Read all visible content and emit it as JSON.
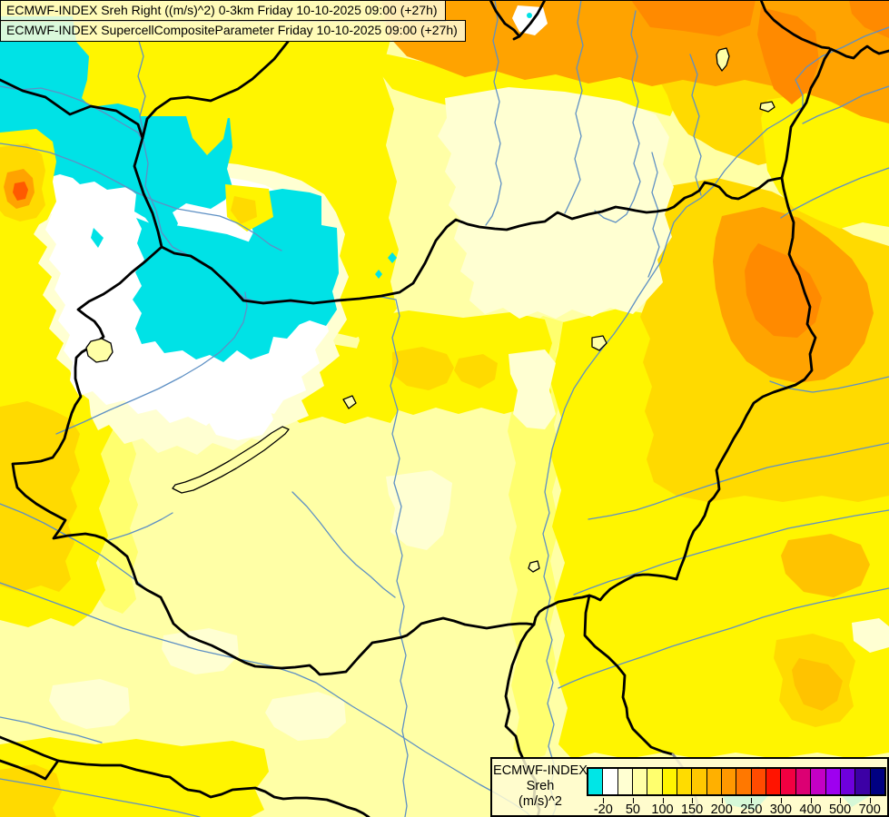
{
  "header": {
    "line1": "ECMWF-INDEX Sreh Right ((m/s)^2) 0-3km Friday 10-10-2025 09:00 (+27h)",
    "line2": "ECMWF-INDEX SupercellCompositeParameter Friday 10-10-2025 09:00 (+27h)",
    "background": "rgba(255,252,216,0.85)"
  },
  "legend": {
    "title_line1": "ECMWF-INDEX",
    "title_line2": "Sreh",
    "title_line3": "(m/s)^2",
    "tick_labels": [
      "-20",
      "50",
      "100",
      "150",
      "200",
      "250",
      "300",
      "400",
      "500",
      "700"
    ],
    "palette": [
      "#00E6E6",
      "#FFFFFF",
      "#FFFFD2",
      "#FFFFA6",
      "#FFFF6E",
      "#FFF500",
      "#FFDC00",
      "#FFC800",
      "#FFB000",
      "#FF9800",
      "#FF7800",
      "#FF4B00",
      "#FF1400",
      "#F20041",
      "#DC0073",
      "#C400C4",
      "#9E00F0",
      "#6E00DC",
      "#3C00A5",
      "#000082"
    ],
    "background": "rgba(255,252,212,0.84)"
  },
  "map": {
    "band_colors": {
      "cyan": "#00E2E6",
      "white": "#FFFFFF",
      "cream": "#FFFFD2",
      "pale": "#FFFFA6",
      "light": "#FFFF6E",
      "bright": "#FFF500",
      "golden": "#FFDA00",
      "amber": "#FFC300",
      "orange": "#FFA300",
      "dark_orange": "#FF8A00",
      "red_orange": "#FF5A00"
    },
    "line_colors": {
      "river": "#5E90C4",
      "border": "#000000",
      "border_gray": "#8C8C8C",
      "lake": "#000000"
    }
  }
}
